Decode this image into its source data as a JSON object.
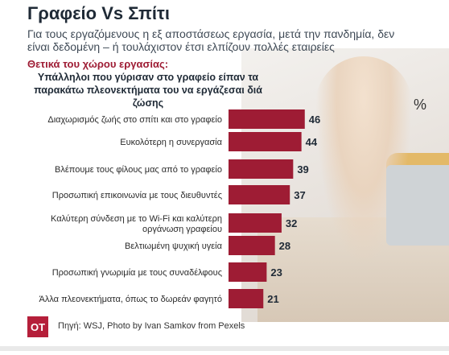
{
  "header": {
    "title": "Γραφείο Vs Σπίτι",
    "subtitle": "Για τους εργαζόμενους η εξ αποστάσεως εργασία, μετά την πανδημία, δεν είναι δεδομένη – ή τουλάχιστον έτσι ελπίζουν πολλές εταιρείες",
    "section": "Θετικά του χώρου εργασίας:",
    "question": "Υπάλληλοι που γύρισαν στο γραφείο είπαν τα παρακάτω πλεονεκτήματα του να εργάζεσαι διά ζώσης"
  },
  "chart_data": {
    "type": "bar",
    "orientation": "horizontal",
    "unit": "%",
    "categories": [
      "Διαχωρισμός ζωής στο σπίτι και στο γραφείο",
      "Ευκολότερη η συνεργασία",
      "Βλέπουμε τους φίλους μας από το γραφείο",
      "Προσωπική επικοινωνία με τους διευθυντές",
      "Καλύτερη σύνδεση με το Wi-Fi και καλύτερη οργάνωση γραφείου",
      "Βελτιωμένη ψυχική υγεία",
      "Προσωπική γνωριμία με τους συναδέλφους",
      "Άλλα πλεονεκτήματα, όπως το δωρεάν φαγητό"
    ],
    "values": [
      46,
      44,
      39,
      37,
      32,
      28,
      23,
      21
    ],
    "bar_color": "#9e1c34"
  },
  "footer": {
    "logo": "OT",
    "source": "Πηγή: WSJ, Photo by Ivan Samkov from Pexels"
  }
}
